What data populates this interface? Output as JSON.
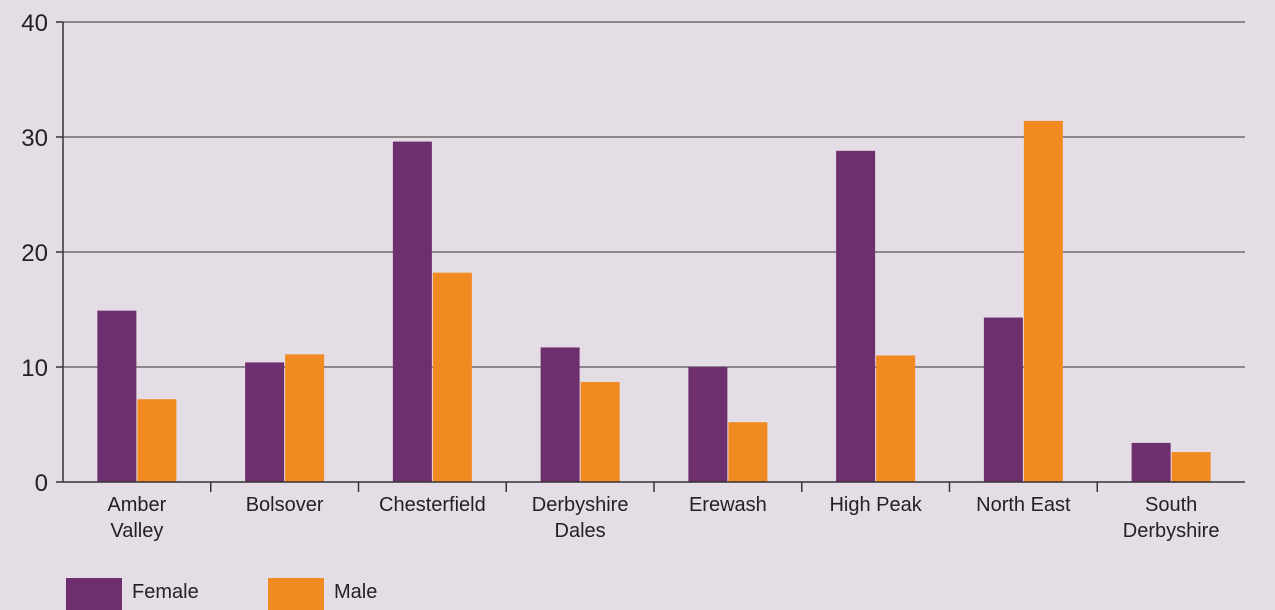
{
  "chart_data": {
    "type": "bar",
    "categories": [
      [
        "Amber",
        "Valley"
      ],
      [
        "Bolsover"
      ],
      [
        "Chesterfield"
      ],
      [
        "Derbyshire",
        "Dales"
      ],
      [
        "Erewash"
      ],
      [
        "High Peak"
      ],
      [
        "North East"
      ],
      [
        "South",
        "Derbyshire"
      ]
    ],
    "series": [
      {
        "name": "Female",
        "color": "#6d2f6d",
        "values": [
          14.9,
          10.4,
          29.6,
          11.7,
          10.0,
          28.8,
          14.3,
          3.4
        ]
      },
      {
        "name": "Male",
        "color": "#f28a22",
        "values": [
          7.2,
          11.1,
          18.2,
          8.7,
          5.2,
          11.0,
          31.4,
          2.6
        ]
      }
    ],
    "yticks": [
      "0",
      "10",
      "20",
      "30",
      "40"
    ],
    "ylim": [
      0,
      40
    ],
    "grid": true,
    "legend": "bottom-left"
  }
}
